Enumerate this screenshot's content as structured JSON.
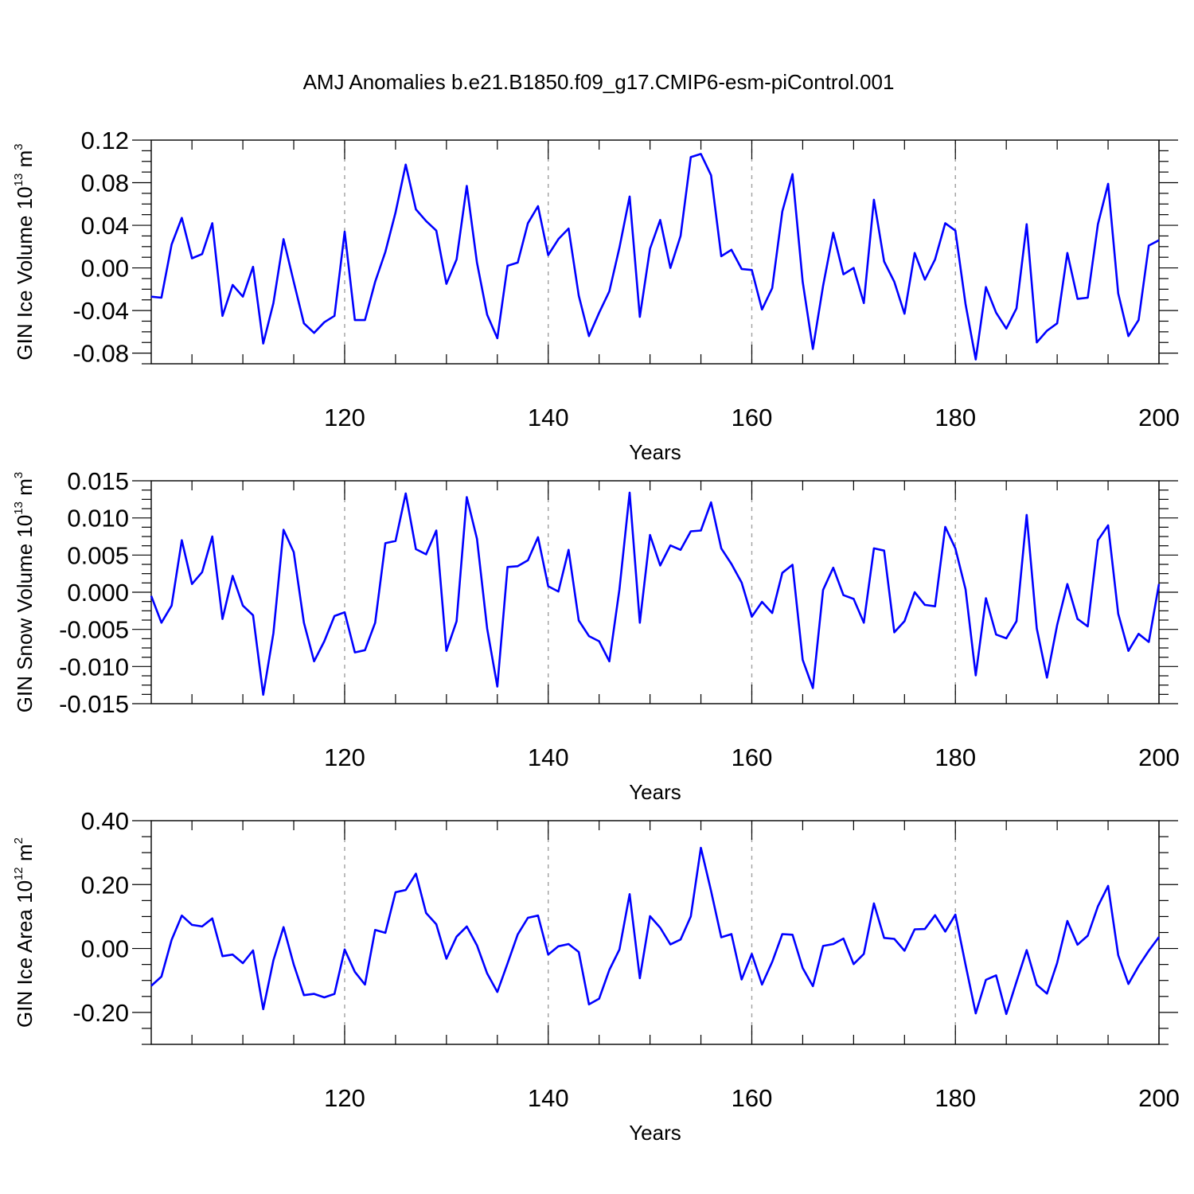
{
  "chart_data": [
    {
      "type": "line",
      "title": "AMJ Anomalies b.e21.B1850.f09_g17.CMIP6-esm-piControl.001",
      "ylabel_main": "GIN Ice Volume 10",
      "ylabel_exp": "13",
      "ylabel_unit": " m",
      "ylabel_unit_exp": "3",
      "xlabel": "Years",
      "xlim": [
        101,
        200
      ],
      "ylim": [
        -0.09,
        0.12
      ],
      "xticks": [
        120,
        140,
        160,
        180,
        200
      ],
      "xtick_labels": [
        "120",
        "140",
        "160",
        "180",
        "200"
      ],
      "yticks": [
        -0.08,
        -0.04,
        0.0,
        0.04,
        0.08,
        0.12
      ],
      "ytick_labels": [
        "-0.08",
        "-0.04",
        "0.00",
        "0.04",
        "0.08",
        "0.12"
      ],
      "color": "#0000ff",
      "grid": "dashed vertical at major x ticks",
      "x_start": 101,
      "values": [
        -0.027,
        -0.028,
        0.022,
        0.047,
        0.009,
        0.013,
        0.042,
        -0.045,
        -0.016,
        -0.027,
        0.001,
        -0.071,
        -0.033,
        0.027,
        -0.013,
        -0.052,
        -0.061,
        -0.051,
        -0.045,
        0.034,
        -0.049,
        -0.049,
        -0.013,
        0.015,
        0.052,
        0.097,
        0.055,
        0.044,
        0.035,
        -0.015,
        0.008,
        0.077,
        0.005,
        -0.044,
        -0.066,
        0.002,
        0.005,
        0.042,
        0.058,
        0.012,
        0.027,
        0.037,
        -0.026,
        -0.064,
        -0.042,
        -0.022,
        0.019,
        0.067,
        -0.046,
        0.018,
        0.045,
        0.0,
        0.03,
        0.104,
        0.107,
        0.087,
        0.011,
        0.017,
        -0.001,
        -0.002,
        -0.039,
        -0.019,
        0.053,
        0.088,
        -0.013,
        -0.076,
        -0.017,
        0.033,
        -0.006,
        0.0,
        -0.033,
        0.064,
        0.006,
        -0.013,
        -0.043,
        0.014,
        -0.011,
        0.008,
        0.042,
        0.035,
        -0.034,
        -0.086,
        -0.018,
        -0.042,
        -0.057,
        -0.038,
        0.041,
        -0.07,
        -0.059,
        -0.052,
        0.014,
        -0.029,
        -0.028,
        0.041,
        0.079,
        -0.024,
        -0.064,
        -0.049,
        0.021,
        0.026
      ]
    },
    {
      "type": "line",
      "ylabel_main": "GIN Snow Volume 10",
      "ylabel_exp": "13",
      "ylabel_unit": " m",
      "ylabel_unit_exp": "3",
      "xlabel": "Years",
      "xlim": [
        101,
        200
      ],
      "ylim": [
        -0.015,
        0.015
      ],
      "xticks": [
        120,
        140,
        160,
        180,
        200
      ],
      "xtick_labels": [
        "120",
        "140",
        "160",
        "180",
        "200"
      ],
      "yticks": [
        -0.015,
        -0.01,
        -0.005,
        0.0,
        0.005,
        0.01,
        0.015
      ],
      "ytick_labels": [
        "-0.015",
        "-0.010",
        "-0.005",
        "0.000",
        "0.005",
        "0.010",
        "0.015"
      ],
      "color": "#0000ff",
      "grid": "dashed vertical at major x ticks",
      "x_start": 101,
      "values": [
        -0.0005,
        -0.0041,
        -0.0018,
        0.007,
        0.0011,
        0.0027,
        0.0075,
        -0.0036,
        0.0022,
        -0.0018,
        -0.0031,
        -0.0138,
        -0.0055,
        0.0084,
        0.0054,
        -0.0041,
        -0.0093,
        -0.0066,
        -0.0032,
        -0.0027,
        -0.0081,
        -0.0078,
        -0.0041,
        0.0066,
        0.0069,
        0.0133,
        0.0058,
        0.0051,
        0.0083,
        -0.0079,
        -0.0039,
        0.0128,
        0.0072,
        -0.0049,
        -0.0127,
        0.0034,
        0.0035,
        0.0043,
        0.0074,
        0.0008,
        0.0001,
        0.0057,
        -0.0038,
        -0.0059,
        -0.0066,
        -0.0093,
        0.0004,
        0.0134,
        -0.0041,
        0.0077,
        0.0036,
        0.0063,
        0.0057,
        0.0082,
        0.0083,
        0.0121,
        0.0059,
        0.0038,
        0.0013,
        -0.0033,
        -0.0013,
        -0.0028,
        0.0026,
        0.0037,
        -0.0091,
        -0.0129,
        0.0003,
        0.0033,
        -0.0004,
        -0.0009,
        -0.0041,
        0.0059,
        0.0056,
        -0.0054,
        -0.0039,
        0.0,
        -0.0017,
        -0.0019,
        0.0088,
        0.0059,
        0.0004,
        -0.0112,
        -0.0008,
        -0.0057,
        -0.0062,
        -0.0039,
        0.0104,
        -0.0049,
        -0.0115,
        -0.0044,
        0.0011,
        -0.0036,
        -0.0046,
        0.007,
        0.009,
        -0.0029,
        -0.0079,
        -0.0056,
        -0.0067,
        0.0011
      ]
    },
    {
      "type": "line",
      "ylabel_main": "GIN Ice Area 10",
      "ylabel_exp": "12",
      "ylabel_unit": " m",
      "ylabel_unit_exp": "2",
      "xlabel": "Years",
      "xlim": [
        101,
        200
      ],
      "ylim": [
        -0.3,
        0.4
      ],
      "xticks": [
        120,
        140,
        160,
        180,
        200
      ],
      "xtick_labels": [
        "120",
        "140",
        "160",
        "180",
        "200"
      ],
      "yticks": [
        -0.2,
        0.0,
        0.2,
        0.4
      ],
      "ytick_labels": [
        "-0.20",
        "0.00",
        "0.20",
        "0.40"
      ],
      "color": "#0000ff",
      "grid": "dashed vertical at major x ticks",
      "x_start": 101,
      "values": [
        -0.117,
        -0.088,
        0.027,
        0.103,
        0.074,
        0.069,
        0.094,
        -0.024,
        -0.019,
        -0.046,
        -0.006,
        -0.19,
        -0.037,
        0.067,
        -0.05,
        -0.146,
        -0.142,
        -0.153,
        -0.142,
        -0.003,
        -0.073,
        -0.113,
        0.058,
        0.049,
        0.176,
        0.183,
        0.234,
        0.111,
        0.076,
        -0.032,
        0.037,
        0.069,
        0.01,
        -0.078,
        -0.136,
        -0.047,
        0.044,
        0.096,
        0.103,
        -0.019,
        0.007,
        0.014,
        -0.011,
        -0.175,
        -0.157,
        -0.067,
        -0.003,
        0.17,
        -0.093,
        0.101,
        0.065,
        0.013,
        0.028,
        0.1,
        0.315,
        0.18,
        0.035,
        0.045,
        -0.097,
        -0.017,
        -0.113,
        -0.042,
        0.045,
        0.043,
        -0.061,
        -0.118,
        0.008,
        0.014,
        0.031,
        -0.049,
        -0.017,
        0.141,
        0.033,
        0.03,
        -0.007,
        0.06,
        0.061,
        0.104,
        0.053,
        0.106,
        -0.051,
        -0.203,
        -0.098,
        -0.084,
        -0.205,
        -0.104,
        -0.005,
        -0.114,
        -0.141,
        -0.045,
        0.086,
        0.012,
        0.04,
        0.132,
        0.196,
        -0.021,
        -0.111,
        -0.055,
        -0.007,
        0.036
      ]
    }
  ]
}
